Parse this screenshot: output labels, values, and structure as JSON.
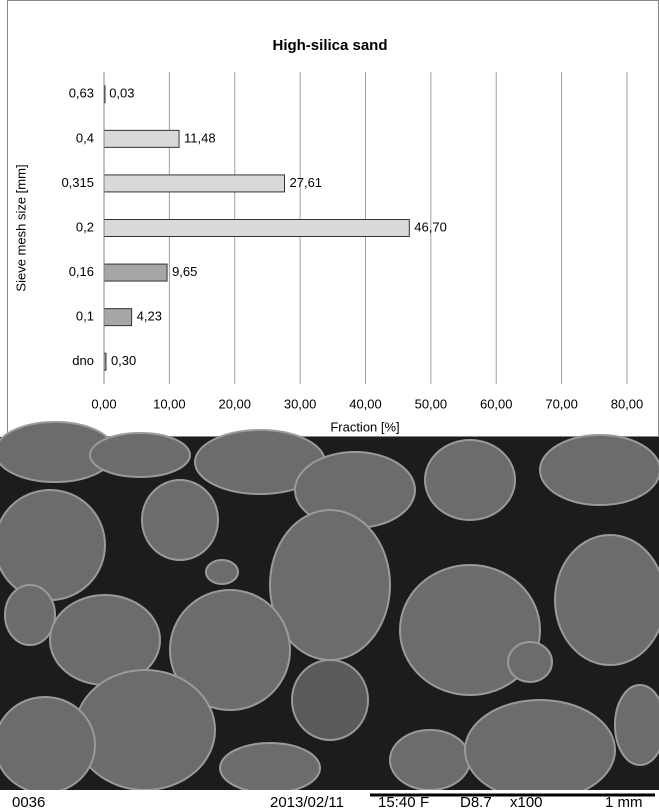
{
  "chart_data": {
    "type": "barh",
    "title": "High-silica sand",
    "x_label": "Fraction [%]",
    "y_label": "Sieve mesh size [mm]",
    "categories": [
      "0,63",
      "0,4",
      "0,315",
      "0,2",
      "0,16",
      "0,1",
      "dno"
    ],
    "values": [
      0.03,
      11.48,
      27.61,
      46.7,
      9.65,
      4.23,
      0.3
    ],
    "value_labels": [
      "0,03",
      "11,48",
      "27,61",
      "46,70",
      "9,65",
      "4,23",
      "0,30"
    ],
    "colors": [
      "#d9d9d9",
      "#d9d9d9",
      "#d9d9d9",
      "#d9d9d9",
      "#a6a6a6",
      "#a6a6a6",
      "#a6a6a6"
    ],
    "xlim": [
      0,
      80
    ],
    "xticks": [
      {
        "value": 0,
        "label": "0,00"
      },
      {
        "value": 10,
        "label": "10,00"
      },
      {
        "value": 20,
        "label": "20,00"
      },
      {
        "value": 30,
        "label": "30,00"
      },
      {
        "value": 40,
        "label": "40,00"
      },
      {
        "value": 50,
        "label": "50,00"
      },
      {
        "value": 60,
        "label": "60,00"
      },
      {
        "value": 70,
        "label": "70,00"
      },
      {
        "value": 80,
        "label": "80,00"
      }
    ],
    "grid": true
  },
  "micrograph": {
    "labels": [
      "0036",
      "2013/02/11",
      "15:40",
      "F",
      "D8.7",
      "x100",
      "1 mm"
    ]
  }
}
